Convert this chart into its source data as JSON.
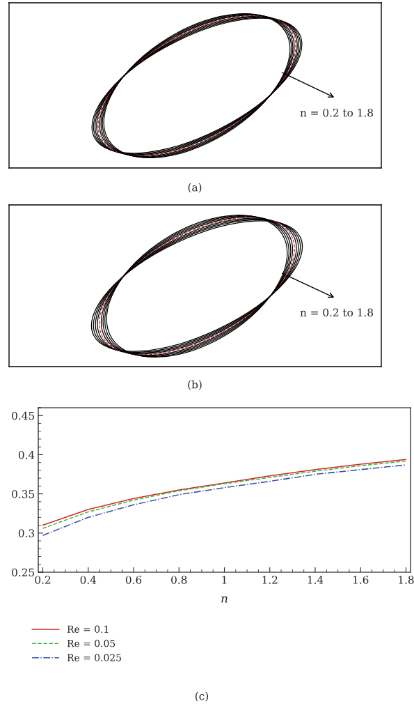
{
  "chart_data": [
    {
      "type": "other",
      "annotations": [
        "n = 0.2 to 1.8",
        "(a)"
      ]
    },
    {
      "type": "other",
      "annotations": [
        "n = 0.2 to 1.8",
        "(b)"
      ]
    },
    {
      "type": "line",
      "x": [
        0.2,
        0.4,
        0.6,
        0.8,
        1.0,
        1.2,
        1.4,
        1.6,
        1.8
      ],
      "xlabel": "n",
      "xlim": [
        0.18,
        1.82
      ],
      "xticks": [
        0.2,
        0.4,
        0.6,
        0.8,
        1,
        1.2,
        1.4,
        1.6,
        1.8
      ],
      "ylim": [
        0.25,
        0.46
      ],
      "yticks": [
        0.25,
        0.3,
        0.35,
        0.4,
        0.45
      ],
      "grid": false,
      "legend": "bottom left",
      "marker": "none",
      "annotations": [
        "(c)"
      ],
      "series": [
        {
          "name": "Re = 0.1",
          "color": "#d62728",
          "line_style": "solid",
          "values": [
            0.31,
            0.33,
            0.344,
            0.355,
            0.364,
            0.373,
            0.381,
            0.388,
            0.394
          ]
        },
        {
          "name": "Re = 0.05",
          "color": "#3cb83c",
          "line_style": "dashed",
          "values": [
            0.306,
            0.327,
            0.342,
            0.354,
            0.363,
            0.371,
            0.379,
            0.386,
            0.392
          ]
        },
        {
          "name": "Re = 0.025",
          "color": "#3a4fb0",
          "line_style": "dashdot",
          "values": [
            0.297,
            0.32,
            0.336,
            0.349,
            0.358,
            0.366,
            0.375,
            0.381,
            0.387
          ]
        }
      ]
    }
  ]
}
